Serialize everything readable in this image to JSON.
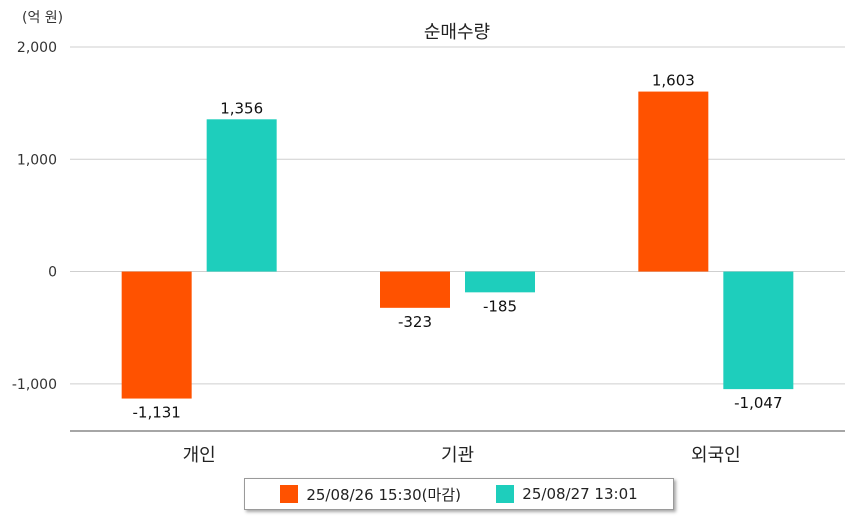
{
  "chart_data": {
    "type": "bar",
    "title": "순매수량",
    "unit_label": "(억 원)",
    "categories": [
      "개인",
      "기관",
      "외국인"
    ],
    "series": [
      {
        "name": "25/08/26 15:30(마감)",
        "color": "#ff5200",
        "values": [
          -1131,
          -323,
          1603
        ],
        "labels": [
          "-1,131",
          "-323",
          "1,603"
        ]
      },
      {
        "name": "25/08/27 13:01",
        "color": "#1ecebc",
        "values": [
          1356,
          -185,
          -1047
        ],
        "labels": [
          "1,356",
          "-185",
          "-1,047"
        ]
      }
    ],
    "y_ticks": [
      2000,
      1000,
      0,
      -1000
    ],
    "y_tick_labels": [
      "2,000",
      "1,000",
      "0",
      "-1,000"
    ],
    "ylim": [
      -1420,
      2000
    ],
    "grid": true,
    "legend_position": "bottom-center"
  }
}
